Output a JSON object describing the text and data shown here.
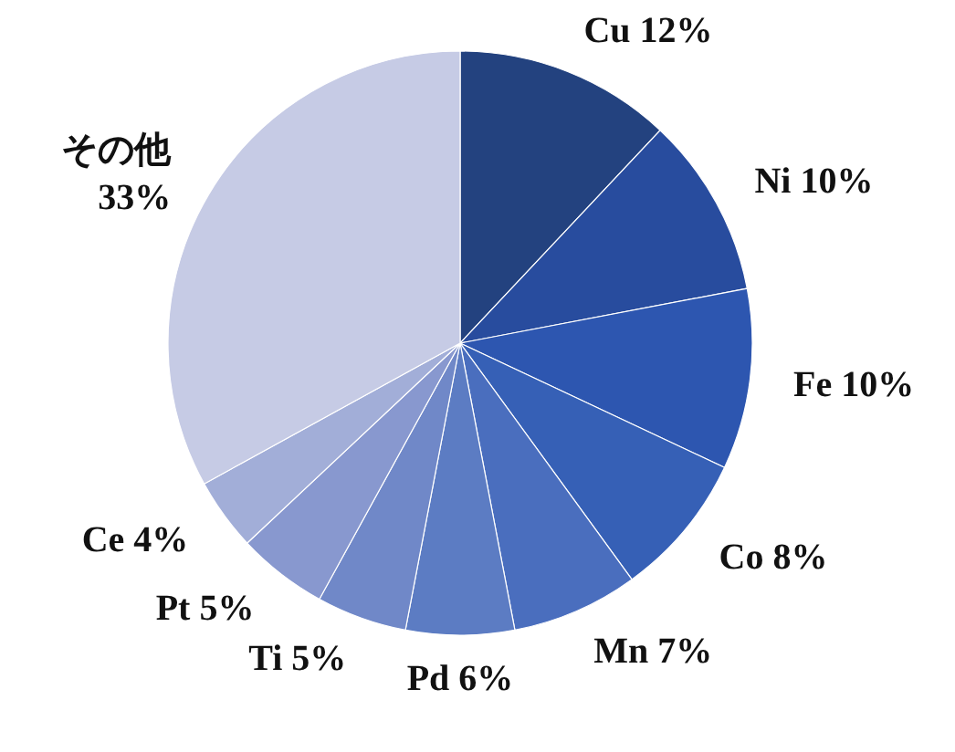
{
  "chart_data": {
    "type": "pie",
    "categories": [
      "Cu",
      "Ni",
      "Fe",
      "Co",
      "Mn",
      "Pd",
      "Ti",
      "Pt",
      "Ce",
      "その他"
    ],
    "values": [
      12,
      10,
      10,
      8,
      7,
      6,
      5,
      5,
      4,
      33
    ],
    "value_labels": [
      "12%",
      "10%",
      "10%",
      "8%",
      "7%",
      "6%",
      "5%",
      "5%",
      "4%",
      "33%"
    ],
    "colors": [
      "#23427f",
      "#284c9e",
      "#2d56b0",
      "#3660b6",
      "#4a6ebe",
      "#5c7cc3",
      "#7088c8",
      "#8898cf",
      "#a2aed8",
      "#c6cbe5"
    ]
  }
}
